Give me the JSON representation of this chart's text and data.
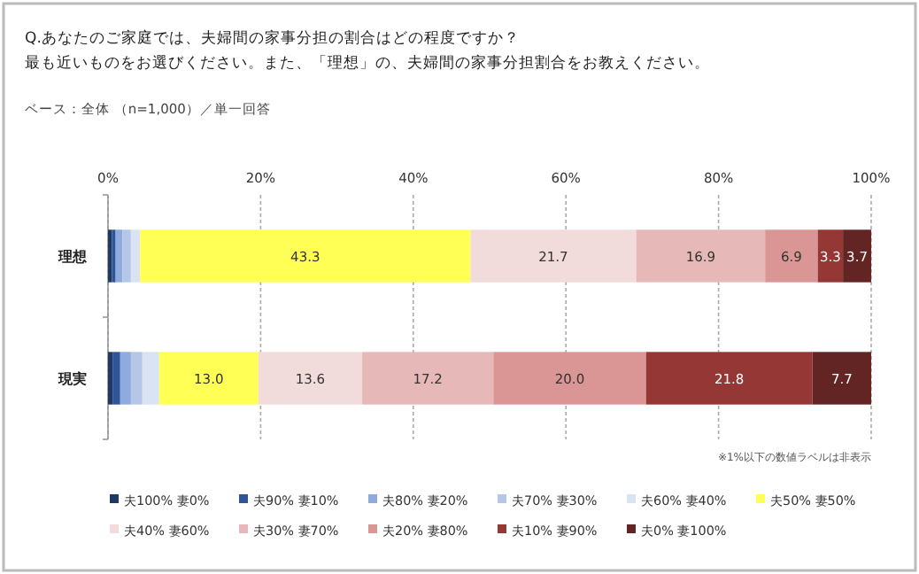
{
  "chart_data": {
    "type": "bar",
    "orientation": "horizontal",
    "stacked": true,
    "title": "Q.あなたのご家庭では、夫婦間の家事分担の割合はどの程度ですか？",
    "subtitle": "最も近いものをお選びください。また、「理想」の、夫婦間の家事分担割合をお教えください。",
    "annotations": [
      "ベース：全体 （n=1,000）／単一回答",
      "※1%以下の数値ラベルは非表示"
    ],
    "categories": [
      "理想",
      "現実"
    ],
    "xlim": [
      0,
      100
    ],
    "xticks": [
      {
        "value": 0,
        "label": "0%"
      },
      {
        "value": 20,
        "label": "20%"
      },
      {
        "value": 40,
        "label": "40%"
      },
      {
        "value": 60,
        "label": "60%"
      },
      {
        "value": 80,
        "label": "80%"
      },
      {
        "value": 100,
        "label": "100%"
      }
    ],
    "grid": "x",
    "legend": "bottom",
    "series": [
      {
        "name": "夫100% 妻0%",
        "color": "#1f3864",
        "values": [
          0.5,
          0.6
        ],
        "value_labels": [
          null,
          null
        ]
      },
      {
        "name": "夫90% 妻10%",
        "color": "#2f5597",
        "values": [
          0.5,
          1.0
        ],
        "value_labels": [
          null,
          null
        ]
      },
      {
        "name": "夫80% 妻20%",
        "color": "#8faadc",
        "values": [
          0.9,
          1.4
        ],
        "value_labels": [
          null,
          null
        ]
      },
      {
        "name": "夫70% 妻30%",
        "color": "#b4c7e7",
        "values": [
          1.1,
          1.5
        ],
        "value_labels": [
          null,
          null
        ]
      },
      {
        "name": "夫60% 妻40%",
        "color": "#dae3f3",
        "values": [
          1.2,
          2.2
        ],
        "value_labels": [
          null,
          null
        ]
      },
      {
        "name": "夫50% 妻50%",
        "color": "#ffff55",
        "values": [
          43.3,
          13.0
        ],
        "value_labels": [
          "43.3",
          "13.0"
        ]
      },
      {
        "name": "夫40% 妻60%",
        "color": "#f2dcdb",
        "values": [
          21.7,
          13.6
        ],
        "value_labels": [
          "21.7",
          "13.6"
        ]
      },
      {
        "name": "夫30% 妻70%",
        "color": "#e6b9b8",
        "values": [
          16.9,
          17.2
        ],
        "value_labels": [
          "16.9",
          "17.2"
        ]
      },
      {
        "name": "夫20% 妻80%",
        "color": "#d99694",
        "values": [
          6.9,
          20.0
        ],
        "value_labels": [
          "6.9",
          "20.0"
        ]
      },
      {
        "name": "夫10% 妻90%",
        "color": "#953735",
        "values": [
          3.3,
          21.8
        ],
        "value_labels": [
          "3.3",
          "21.8"
        ]
      },
      {
        "name": "夫0% 妻100%",
        "color": "#632523",
        "values": [
          3.7,
          7.7
        ],
        "value_labels": [
          "3.7",
          "7.7"
        ]
      }
    ]
  }
}
